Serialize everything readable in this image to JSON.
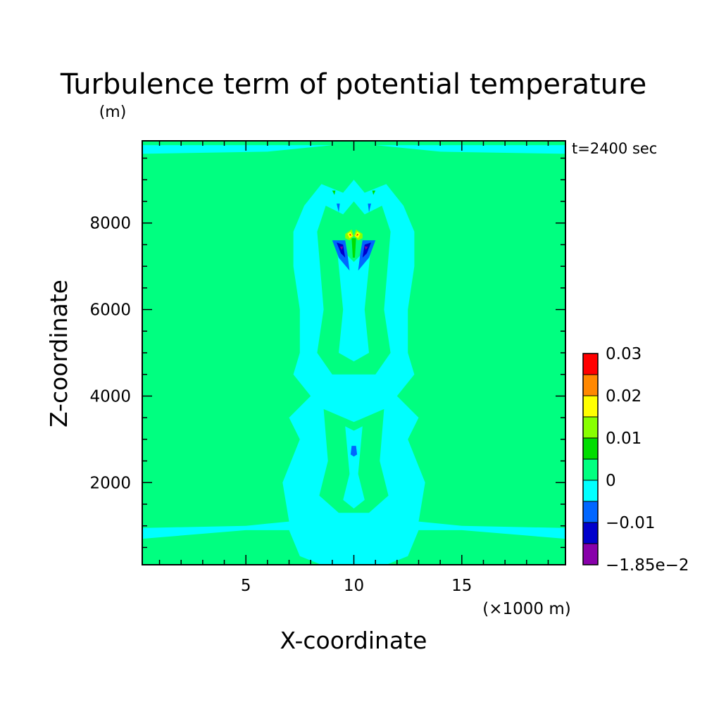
{
  "chart_data": {
    "type": "heatmap",
    "title": "Turbulence term of potential temperature",
    "y_unit": "(m)",
    "time_label": "t=2400 sec",
    "xlabel": "X-coordinate",
    "x_unit": "(×1000 m)",
    "ylabel": "Z-coordinate",
    "xlim": [
      0.2,
      19.8
    ],
    "ylim": [
      100,
      9900
    ],
    "x_ticks": [
      5,
      10,
      15
    ],
    "x_tick_labels": [
      "5",
      "10",
      "15"
    ],
    "y_ticks": [
      2000,
      4000,
      6000,
      8000
    ],
    "y_tick_labels": [
      "2000",
      "4000",
      "6000",
      "8000"
    ],
    "background_level_color": "#00ff80",
    "colorbar": {
      "colors": [
        "#8800aa",
        "#0000cc",
        "#0066ff",
        "#00ffff",
        "#00ff80",
        "#00dd00",
        "#88ff00",
        "#ffff00",
        "#ff8800",
        "#ff0000"
      ],
      "labels": [
        {
          "pos": 0,
          "text": "−1.85e−2"
        },
        {
          "pos": 2,
          "text": "−0.01"
        },
        {
          "pos": 4,
          "text": "0"
        },
        {
          "pos": 6,
          "text": "0.01"
        },
        {
          "pos": 8,
          "text": "0.02"
        },
        {
          "pos": 10,
          "text": "0.03"
        }
      ]
    },
    "regions": [
      {
        "level": 3,
        "points": [
          [
            0.2,
            9600
          ],
          [
            6,
            9650
          ],
          [
            9,
            9800
          ],
          [
            11,
            9800
          ],
          [
            14,
            9650
          ],
          [
            19.8,
            9600
          ],
          [
            19.8,
            9800
          ],
          [
            0.2,
            9800
          ]
        ]
      },
      {
        "level": 3,
        "points": [
          [
            0.2,
            700
          ],
          [
            5,
            900
          ],
          [
            7,
            900
          ],
          [
            7.5,
            300
          ],
          [
            8.5,
            100
          ],
          [
            11.5,
            100
          ],
          [
            12.5,
            300
          ],
          [
            13,
            900
          ],
          [
            15,
            900
          ],
          [
            19.8,
            700
          ],
          [
            19.8,
            950
          ],
          [
            15,
            1000
          ],
          [
            13,
            1100
          ],
          [
            13.3,
            2000
          ],
          [
            12.5,
            3000
          ],
          [
            13,
            3500
          ],
          [
            12,
            4000
          ],
          [
            12.8,
            4500
          ],
          [
            12.5,
            5000
          ],
          [
            12.5,
            6000
          ],
          [
            12.8,
            7000
          ],
          [
            12.8,
            7800
          ],
          [
            12.3,
            8400
          ],
          [
            11.5,
            8900
          ],
          [
            10.5,
            8700
          ],
          [
            10,
            9000
          ],
          [
            9.5,
            8700
          ],
          [
            8.5,
            8900
          ],
          [
            7.7,
            8400
          ],
          [
            7.2,
            7800
          ],
          [
            7.2,
            7000
          ],
          [
            7.5,
            6000
          ],
          [
            7.5,
            5000
          ],
          [
            7.2,
            4500
          ],
          [
            8,
            4000
          ],
          [
            7,
            3500
          ],
          [
            7.5,
            3000
          ],
          [
            6.7,
            2000
          ],
          [
            7,
            1100
          ],
          [
            5,
            1000
          ],
          [
            0.2,
            950
          ]
        ]
      },
      {
        "level": 4,
        "points": [
          [
            8.3,
            7800
          ],
          [
            8.6,
            6000
          ],
          [
            8.3,
            5000
          ],
          [
            9,
            4500
          ],
          [
            11,
            4500
          ],
          [
            11.7,
            5000
          ],
          [
            11.4,
            6000
          ],
          [
            11.7,
            7800
          ],
          [
            11.3,
            8400
          ],
          [
            10.5,
            8200
          ],
          [
            10,
            8500
          ],
          [
            9.5,
            8200
          ],
          [
            8.7,
            8400
          ]
        ]
      },
      {
        "level": 4,
        "points": [
          [
            8.6,
            3700
          ],
          [
            8.8,
            2500
          ],
          [
            8.4,
            1700
          ],
          [
            9.3,
            1300
          ],
          [
            10.7,
            1300
          ],
          [
            11.6,
            1700
          ],
          [
            11.2,
            2500
          ],
          [
            11.4,
            3700
          ],
          [
            10,
            3400
          ]
        ]
      },
      {
        "level": 3,
        "points": [
          [
            9.2,
            7500
          ],
          [
            9.5,
            6000
          ],
          [
            9.3,
            5000
          ],
          [
            10,
            4800
          ],
          [
            10.7,
            5000
          ],
          [
            10.5,
            6000
          ],
          [
            10.8,
            7500
          ],
          [
            10,
            7100
          ]
        ]
      },
      {
        "level": 3,
        "points": [
          [
            9.6,
            3300
          ],
          [
            9.8,
            2200
          ],
          [
            9.5,
            1600
          ],
          [
            10,
            1400
          ],
          [
            10.5,
            1600
          ],
          [
            10.2,
            2200
          ],
          [
            10.4,
            3300
          ],
          [
            10,
            3200
          ]
        ]
      },
      {
        "level": 2,
        "points": [
          [
            9.0,
            7600
          ],
          [
            9.3,
            7200
          ],
          [
            9.8,
            6900
          ],
          [
            9.7,
            7300
          ],
          [
            9.6,
            7600
          ]
        ]
      },
      {
        "level": 2,
        "points": [
          [
            11.0,
            7600
          ],
          [
            10.7,
            7200
          ],
          [
            10.2,
            6900
          ],
          [
            10.3,
            7300
          ],
          [
            10.4,
            7600
          ]
        ]
      },
      {
        "level": 1,
        "points": [
          [
            9.2,
            7550
          ],
          [
            9.4,
            7300
          ],
          [
            9.6,
            7200
          ],
          [
            9.5,
            7500
          ]
        ]
      },
      {
        "level": 1,
        "points": [
          [
            10.8,
            7550
          ],
          [
            10.6,
            7300
          ],
          [
            10.4,
            7200
          ],
          [
            10.5,
            7500
          ]
        ]
      },
      {
        "level": 0,
        "points": [
          [
            9.35,
            7450
          ],
          [
            9.45,
            7380
          ],
          [
            9.5,
            7460
          ]
        ]
      },
      {
        "level": 0,
        "points": [
          [
            10.65,
            7450
          ],
          [
            10.55,
            7380
          ],
          [
            10.5,
            7460
          ]
        ]
      },
      {
        "level": 2,
        "points": [
          [
            9.9,
            2850
          ],
          [
            10.1,
            2850
          ],
          [
            10.15,
            2650
          ],
          [
            10,
            2600
          ],
          [
            9.85,
            2650
          ]
        ]
      },
      {
        "level": 2,
        "points": [
          [
            9.2,
            8450
          ],
          [
            9.3,
            8250
          ],
          [
            9.35,
            8450
          ]
        ]
      },
      {
        "level": 2,
        "points": [
          [
            10.8,
            8450
          ],
          [
            10.7,
            8250
          ],
          [
            10.65,
            8450
          ]
        ]
      },
      {
        "level": 6,
        "points": [
          [
            9.6,
            7750
          ],
          [
            9.9,
            7850
          ],
          [
            10.0,
            7700
          ],
          [
            9.8,
            7600
          ],
          [
            9.6,
            7650
          ]
        ]
      },
      {
        "level": 6,
        "points": [
          [
            10.4,
            7750
          ],
          [
            10.1,
            7850
          ],
          [
            10.0,
            7700
          ],
          [
            10.2,
            7600
          ],
          [
            10.4,
            7650
          ]
        ]
      },
      {
        "level": 7,
        "points": [
          [
            9.7,
            7750
          ],
          [
            9.85,
            7800
          ],
          [
            9.95,
            7700
          ],
          [
            9.8,
            7650
          ]
        ]
      },
      {
        "level": 7,
        "points": [
          [
            10.3,
            7750
          ],
          [
            10.15,
            7800
          ],
          [
            10.05,
            7700
          ],
          [
            10.2,
            7650
          ]
        ]
      },
      {
        "level": 9,
        "points": [
          [
            9.78,
            7730
          ],
          [
            9.85,
            7750
          ],
          [
            9.88,
            7700
          ]
        ]
      },
      {
        "level": 9,
        "points": [
          [
            10.22,
            7730
          ],
          [
            10.15,
            7750
          ],
          [
            10.12,
            7700
          ]
        ]
      },
      {
        "level": 5,
        "points": [
          [
            9.9,
            7650
          ],
          [
            10.1,
            7650
          ],
          [
            10.05,
            7200
          ],
          [
            9.95,
            7200
          ]
        ]
      },
      {
        "level": 5,
        "points": [
          [
            9.0,
            8750
          ],
          [
            9.1,
            8650
          ],
          [
            9.15,
            8750
          ]
        ]
      },
      {
        "level": 5,
        "points": [
          [
            11.0,
            8750
          ],
          [
            10.9,
            8650
          ],
          [
            10.85,
            8750
          ]
        ]
      }
    ]
  }
}
